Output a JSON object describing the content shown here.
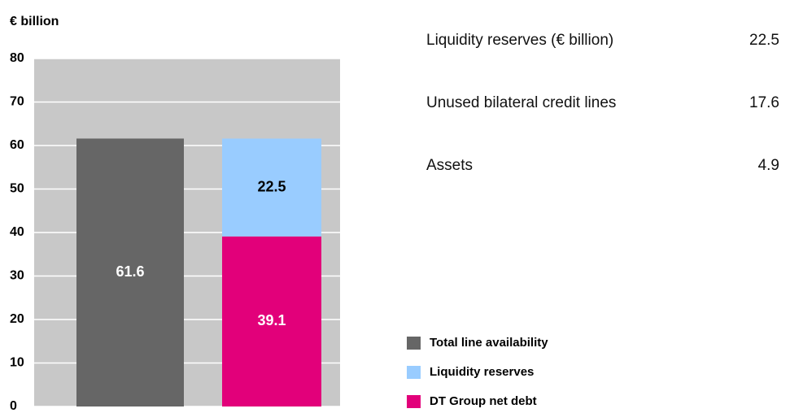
{
  "chart_data": {
    "type": "bar",
    "stacked": true,
    "y_label": "€ billion",
    "categories": [
      null,
      null
    ],
    "series": [
      {
        "name": "Total line availability",
        "color": "#666666",
        "values": [
          61.6,
          null
        ]
      },
      {
        "name": "Liquidity reserves",
        "color": "#99ccff",
        "values": [
          null,
          22.5
        ]
      },
      {
        "name": "DT Group net debt",
        "color": "#e2007a",
        "values": [
          null,
          39.1
        ]
      }
    ],
    "ylim": [
      0,
      80
    ],
    "yticks": [
      0,
      10,
      20,
      30,
      40,
      50,
      60,
      70,
      80
    ],
    "grid": true
  },
  "table": {
    "rows": [
      [
        "Liquidity reserves (€ billion)",
        22.5
      ],
      [
        "Unused bilateral credit lines",
        17.6
      ],
      [
        "Assets",
        4.9
      ]
    ]
  }
}
